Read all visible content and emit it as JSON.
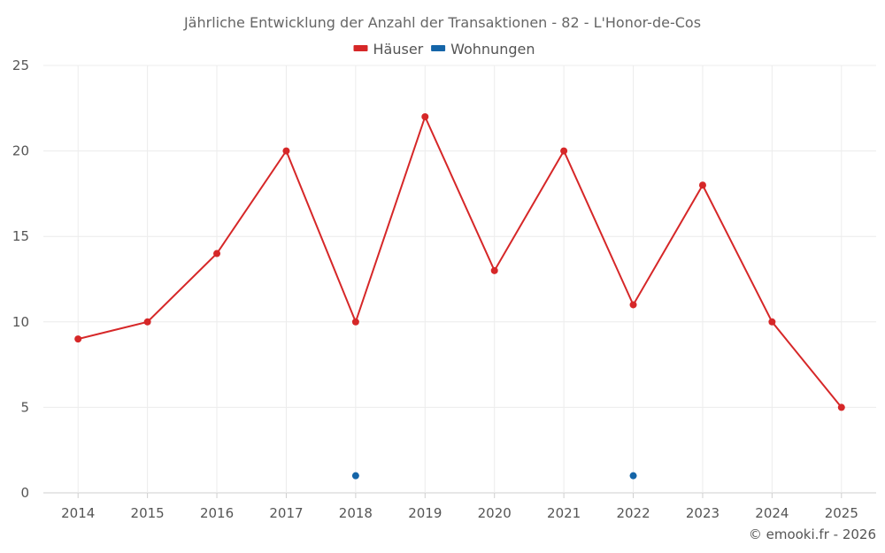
{
  "chart_data": {
    "type": "line",
    "title": "Jährliche Entwicklung der Anzahl der Transaktionen - 82 - L'Honor-de-Cos",
    "categories": [
      "2014",
      "2015",
      "2016",
      "2017",
      "2018",
      "2019",
      "2020",
      "2021",
      "2022",
      "2023",
      "2024",
      "2025"
    ],
    "ylim": [
      0,
      25
    ],
    "yticks": [
      0,
      5,
      10,
      15,
      20,
      25
    ],
    "grid": true,
    "legend": "top-center",
    "series": [
      {
        "name": "Häuser",
        "color": "#d62728",
        "values": [
          9,
          10,
          14,
          20,
          10,
          22,
          13,
          20,
          11,
          18,
          10,
          5
        ]
      },
      {
        "name": "Wohnungen",
        "color": "#1565a8",
        "values": [
          null,
          null,
          null,
          null,
          1,
          null,
          null,
          null,
          1,
          null,
          null,
          null
        ]
      }
    ]
  },
  "credit": "© emooki.fr - 2026"
}
